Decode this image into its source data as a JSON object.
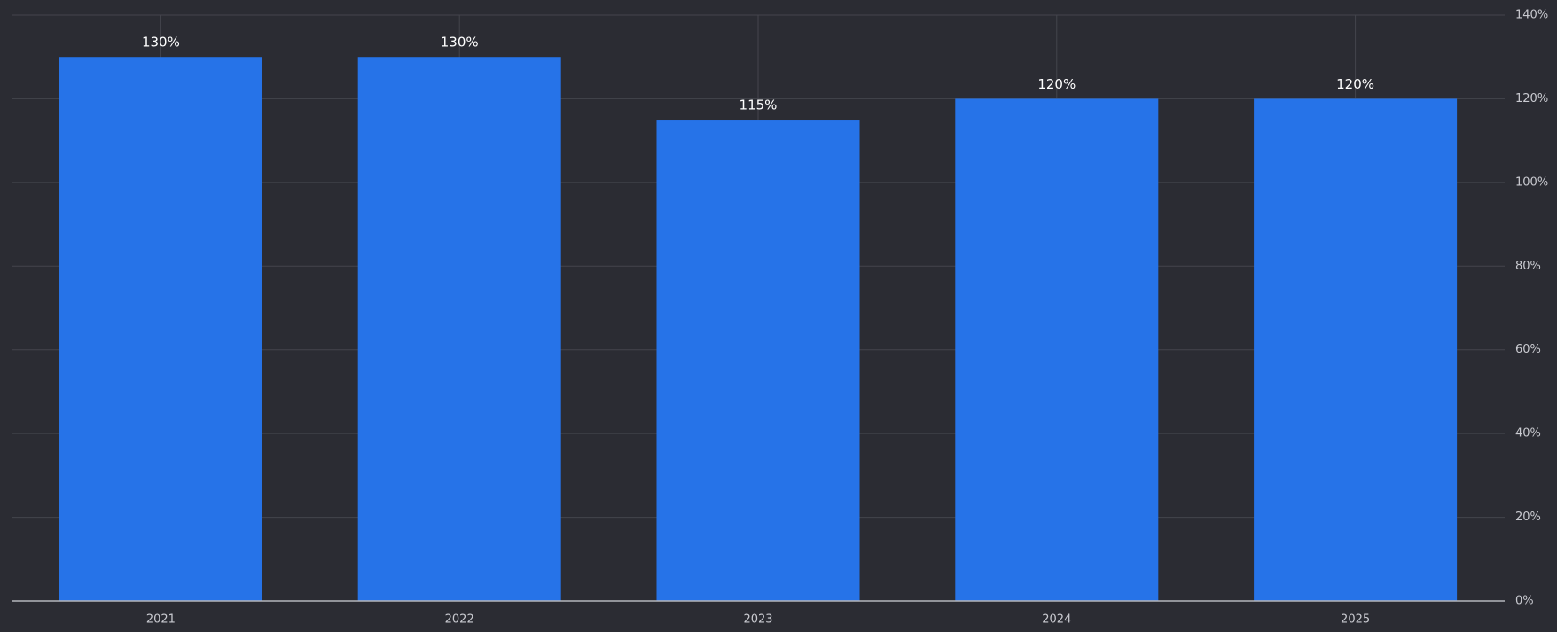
{
  "chart_data": {
    "type": "bar",
    "categories": [
      "2021",
      "2022",
      "2023",
      "2024",
      "2025"
    ],
    "values": [
      130,
      130,
      115,
      120,
      120
    ],
    "value_labels": [
      "130%",
      "130%",
      "115%",
      "120%",
      "120%"
    ],
    "color": "#2673e8",
    "ylim": [
      0,
      140
    ],
    "yticks": [
      {
        "value": 0,
        "label": "0%"
      },
      {
        "value": 20,
        "label": "20%"
      },
      {
        "value": 40,
        "label": "40%"
      },
      {
        "value": 60,
        "label": "60%"
      },
      {
        "value": 80,
        "label": "80%"
      },
      {
        "value": 100,
        "label": "100%"
      },
      {
        "value": 120,
        "label": "120%"
      },
      {
        "value": 140,
        "label": "140%"
      }
    ],
    "grid": true
  }
}
